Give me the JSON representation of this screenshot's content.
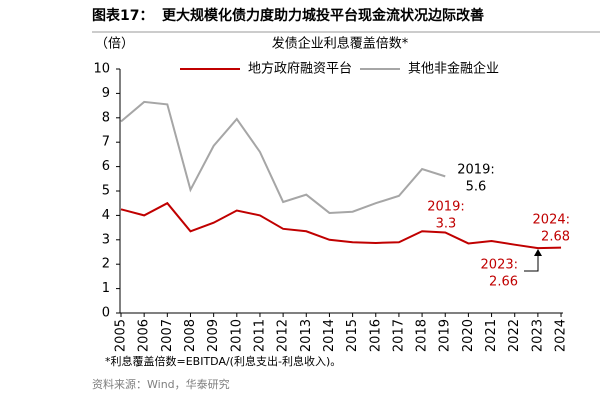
{
  "chart_data": {
    "type": "line",
    "figure_label": "图表17：",
    "title": "更大规模化债力度助力城投平台现金流状况边际改善",
    "subtitle": "发债企业利息覆盖倍数*",
    "y_label": "（倍）",
    "categories": [
      "2005",
      "2006",
      "2007",
      "2008",
      "2009",
      "2010",
      "2011",
      "2012",
      "2013",
      "2014",
      "2015",
      "2016",
      "2017",
      "2018",
      "2019",
      "2020",
      "2021",
      "2022",
      "2023",
      "2024"
    ],
    "series": [
      {
        "name": "地方政府融资平台",
        "color": "#c00000",
        "values": [
          4.25,
          4.0,
          4.5,
          3.35,
          3.7,
          4.2,
          4.0,
          3.45,
          3.35,
          3.0,
          2.9,
          2.87,
          2.9,
          3.35,
          3.3,
          2.85,
          2.95,
          2.8,
          2.66,
          2.68
        ]
      },
      {
        "name": "其他非金融企业",
        "color": "#a6a6a6",
        "values": [
          7.85,
          8.65,
          8.55,
          5.05,
          6.85,
          7.95,
          6.6,
          4.55,
          4.85,
          4.1,
          4.15,
          4.5,
          4.8,
          5.9,
          5.6,
          null,
          null,
          null,
          null,
          null
        ]
      }
    ],
    "annotations": [
      {
        "lines": [
          "2019:",
          "5.6"
        ],
        "color": "#000000"
      },
      {
        "lines": [
          "2019:",
          "3.3"
        ],
        "color": "#c00000"
      },
      {
        "lines": [
          "2024:",
          "2.68"
        ],
        "color": "#c00000"
      },
      {
        "lines": [
          "2023:",
          "2.66"
        ],
        "color": "#c00000"
      }
    ],
    "ylim": [
      0,
      10
    ],
    "yticks": [
      0,
      1,
      2,
      3,
      4,
      5,
      6,
      7,
      8,
      9,
      10
    ],
    "footnote": "*利息覆盖倍数=EBITDA/(利息支出-利息收入)。",
    "source": "资料来源：Wind，华泰研究"
  }
}
